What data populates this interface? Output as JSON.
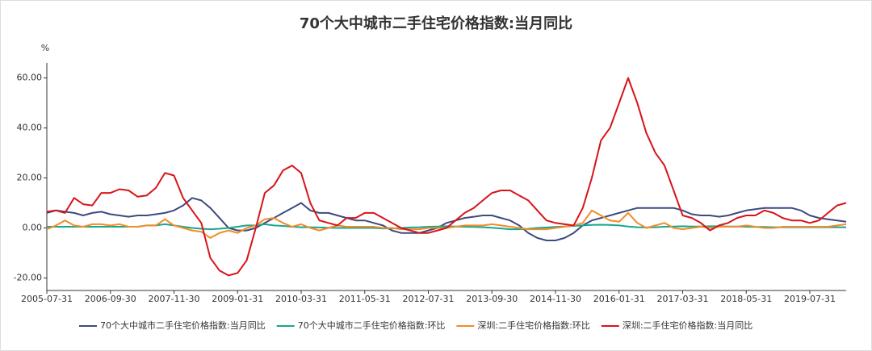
{
  "chart_data": {
    "type": "line",
    "title": "70个大中城市二手住宅价格指数:当月同比",
    "y_label": "%",
    "categories": [
      "2005-07-31",
      null,
      null,
      null,
      null,
      null,
      null,
      "2006-09-30",
      null,
      null,
      null,
      null,
      null,
      null,
      "2007-11-30",
      null,
      null,
      null,
      null,
      null,
      null,
      "2009-01-31",
      null,
      null,
      null,
      null,
      null,
      null,
      "2010-03-31",
      null,
      null,
      null,
      null,
      null,
      null,
      "2011-05-31",
      null,
      null,
      null,
      null,
      null,
      null,
      "2012-07-31",
      null,
      null,
      null,
      null,
      null,
      null,
      "2013-09-30",
      null,
      null,
      null,
      null,
      null,
      null,
      "2014-11-30",
      null,
      null,
      null,
      null,
      null,
      null,
      "2016-01-31",
      null,
      null,
      null,
      null,
      null,
      null,
      "2017-03-31",
      null,
      null,
      null,
      null,
      null,
      null,
      "2018-05-31",
      null,
      null,
      null,
      null,
      null,
      null,
      "2019-07-31",
      null,
      null,
      null,
      null
    ],
    "series": [
      {
        "name": "70个大中城市二手住宅价格指数:当月同比",
        "color": "#3d4b7e",
        "values": [
          6,
          7,
          6.5,
          6,
          5,
          6,
          6.5,
          5.5,
          5,
          4.5,
          5,
          5,
          5.5,
          6,
          7,
          9,
          12,
          11,
          8,
          4,
          0,
          -1,
          -1,
          0,
          2,
          4,
          6,
          8,
          10,
          7,
          6,
          6,
          5,
          4,
          3,
          3,
          2,
          1,
          -1,
          -2,
          -2,
          -2,
          -1,
          0,
          2,
          3,
          4,
          4.5,
          5,
          5,
          4,
          3,
          1,
          -2,
          -4,
          -5,
          -5,
          -4,
          -2,
          1,
          3,
          4,
          5,
          6,
          7,
          8,
          8,
          8,
          8,
          8,
          7,
          5.5,
          5,
          5,
          4.5,
          5,
          6,
          7,
          7.5,
          8,
          8,
          8,
          8,
          7,
          5,
          4,
          3.5,
          3,
          2.5
        ]
      },
      {
        "name": "70个大中城市二手住宅价格指数:环比",
        "color": "#1aa58f",
        "values": [
          0.5,
          0.5,
          0.5,
          0.5,
          0.5,
          0.5,
          0.5,
          0.5,
          0.5,
          0.5,
          0.5,
          1,
          1,
          1.5,
          1,
          0.5,
          0,
          -0.3,
          -0.5,
          -0.3,
          0,
          0.5,
          1,
          1,
          1.5,
          1,
          0.8,
          0.5,
          0.3,
          0.3,
          0.2,
          0.1,
          0,
          0,
          0,
          0,
          0,
          -0.2,
          -0.2,
          0,
          0.2,
          0.3,
          0.5,
          0.6,
          0.7,
          0.6,
          0.5,
          0.4,
          0.3,
          0.1,
          -0.2,
          -0.5,
          -0.5,
          -0.3,
          0,
          0.2,
          0.4,
          0.6,
          0.8,
          1,
          1.2,
          1.3,
          1.2,
          1,
          0.6,
          0.3,
          0.2,
          0.3,
          0.5,
          0.6,
          0.7,
          0.6,
          0.6,
          0.7,
          0.7,
          0.6,
          0.6,
          0.5,
          0.4,
          0.4,
          0.3,
          0.3,
          0.3,
          0.3,
          0.3,
          0.3,
          0.3,
          0.3,
          0.3
        ]
      },
      {
        "name": "深圳:二手住宅价格指数:环比",
        "color": "#f28c28",
        "values": [
          -0.5,
          1,
          3,
          1,
          0.5,
          1.5,
          1.5,
          1,
          1.5,
          0.5,
          0.5,
          1,
          1,
          3.5,
          1,
          0,
          -1,
          -1.5,
          -4,
          -2,
          -1,
          -2,
          0,
          1,
          3.5,
          4,
          2,
          0.5,
          1.5,
          0,
          -1,
          0,
          1,
          0.5,
          0.5,
          0.5,
          0.5,
          0,
          0,
          -0.5,
          -0.5,
          -0.5,
          0,
          0,
          0,
          0.5,
          1,
          1,
          1,
          1.5,
          1,
          0.5,
          0,
          -0.5,
          -0.5,
          -0.5,
          0,
          0.5,
          1,
          2,
          7,
          5,
          3,
          2.5,
          6,
          2,
          0,
          1,
          2,
          0,
          -0.5,
          0,
          0.5,
          0,
          0.5,
          0.5,
          0.5,
          1,
          0.5,
          0,
          0,
          0.5,
          0.5,
          0.5,
          0.5,
          0.5,
          0.5,
          1,
          1.5
        ]
      },
      {
        "name": "深圳:二手住宅价格指数:当月同比",
        "color": "#d7141a",
        "values": [
          6.5,
          7,
          6,
          12,
          9.5,
          9,
          14,
          14,
          15.5,
          15,
          12.5,
          13,
          16,
          22,
          21,
          12,
          7,
          2,
          -12,
          -17,
          -19,
          -18,
          -13,
          0,
          14,
          17,
          23,
          25,
          22,
          10,
          3,
          2,
          1,
          4,
          4,
          6,
          6,
          4,
          2,
          0,
          -1,
          -2,
          -2,
          -1,
          0,
          3,
          6,
          8,
          11,
          14,
          15,
          15,
          13,
          11,
          7,
          3,
          2,
          1.5,
          1,
          8,
          20,
          35,
          40,
          50,
          60,
          50,
          38,
          30,
          25,
          15,
          5,
          4,
          2,
          -1,
          1,
          2,
          4,
          5,
          5,
          7,
          6,
          4,
          3,
          3,
          2,
          3,
          6,
          9,
          10
        ]
      }
    ],
    "ylim": [
      -25,
      66
    ],
    "yticks": [
      {
        "value": -20,
        "label": "-20.00"
      },
      {
        "value": 0,
        "label": "0.00"
      },
      {
        "value": 20,
        "label": "20.00"
      },
      {
        "value": 40,
        "label": "40.00"
      },
      {
        "value": 60,
        "label": "60.00"
      }
    ]
  }
}
